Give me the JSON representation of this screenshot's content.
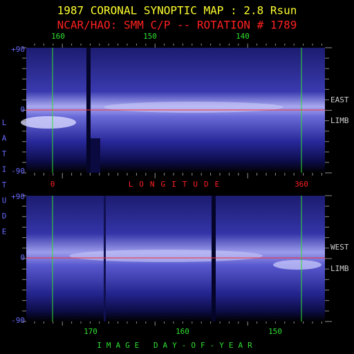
{
  "header": {
    "title": "1987 CORONAL SYNOPTIC MAP : 2.8 Rsun",
    "subtitle": "NCAR/HAO: SMM C/P -- ROTATION # 1789"
  },
  "top_axis": {
    "labels": [
      "160",
      "150",
      "140"
    ]
  },
  "upper_panel": {
    "lat_labels": [
      "+90",
      "0",
      "-90"
    ],
    "side_labels": [
      "EAST",
      "LIMB"
    ]
  },
  "middle_axis": {
    "start": "0",
    "title": "LONGITUDE",
    "end": "360"
  },
  "lower_panel": {
    "lat_labels": [
      "+90",
      "0",
      "-90"
    ],
    "side_labels": [
      "WEST",
      "LIMB"
    ]
  },
  "left_axis": {
    "letters": [
      "L",
      "A",
      "T",
      "I",
      "T",
      "U",
      "D",
      "E"
    ]
  },
  "bottom_axis": {
    "labels": [
      "170",
      "160",
      "150"
    ],
    "title": "IMAGE DAY-OF-YEAR"
  }
}
